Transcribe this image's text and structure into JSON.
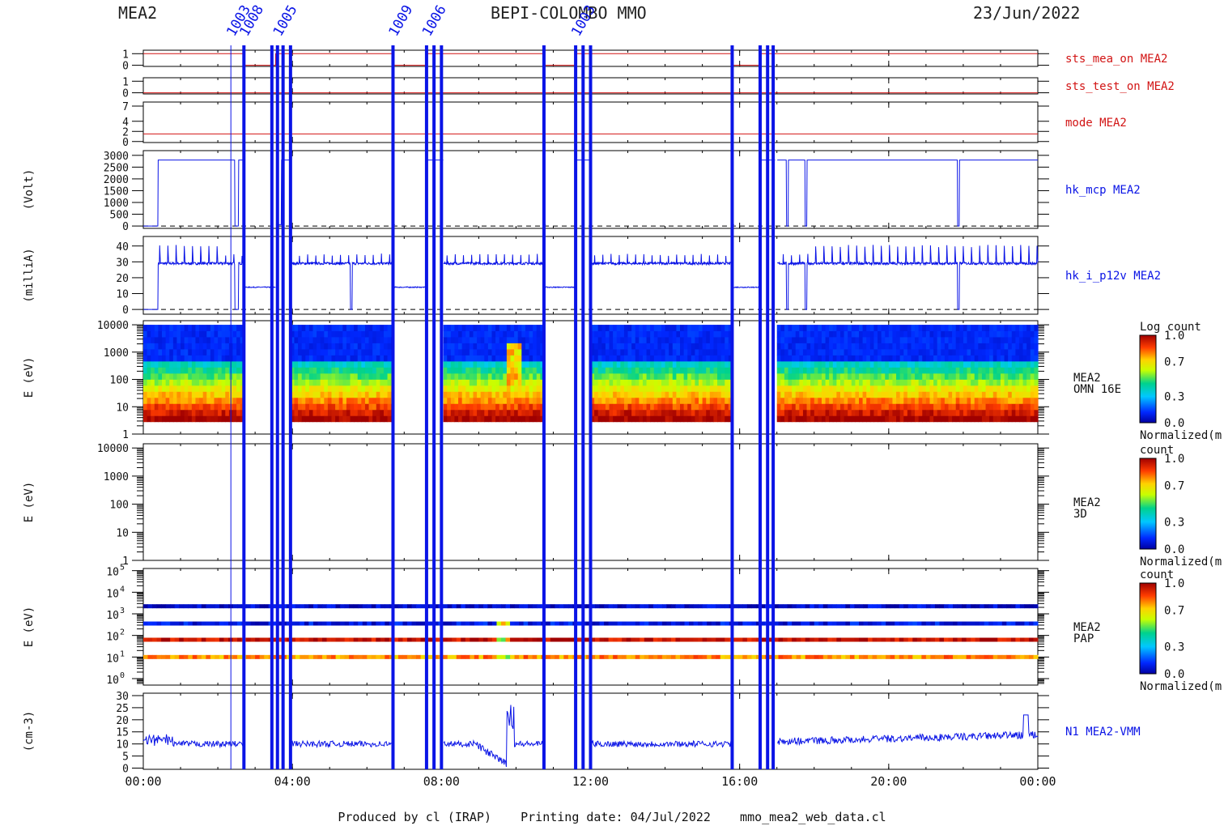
{
  "header": {
    "instrument": "MEA2",
    "title": "BEPI-COLOMBO MMO",
    "date": "23/Jun/2022"
  },
  "footer": "Produced by cl (IRAP)    Printing date: 04/Jul/2022    mmo_mea2_web_data.cl",
  "colors": {
    "blue": "#0a14e6",
    "red": "#d21414",
    "axis": "#000000"
  },
  "chart_data": {
    "type": "line",
    "time_axis": {
      "range_hours": [
        0,
        24
      ],
      "ticks": [
        "00:00",
        "04:00",
        "08:00",
        "12:00",
        "16:00",
        "20:00",
        "00:00"
      ],
      "tick_hours": [
        0,
        4,
        8,
        12,
        16,
        20,
        24
      ]
    },
    "gaps_hours": [
      [
        2.7,
        3.55
      ],
      [
        3.95,
        6.7
      ],
      [
        6.75,
        7.6
      ],
      [
        8.05,
        10.75
      ],
      [
        10.8,
        11.6
      ],
      [
        12.0,
        15.8
      ],
      [
        15.85,
        16.55
      ],
      [
        16.95,
        17.0
      ]
    ],
    "event_lines_hours": [
      2.35,
      2.7,
      3.45,
      3.6,
      3.75,
      3.95,
      6.7,
      7.6,
      7.8,
      8.0,
      10.75,
      11.6,
      11.8,
      12.0,
      15.8,
      16.55,
      16.75,
      16.9
    ],
    "event_labels": [
      "1003",
      "1008",
      "1005",
      "1009",
      "1006",
      "1003"
    ],
    "panels": [
      {
        "name": "sts_mea_on MEA2",
        "color": "red",
        "yticks": [
          "1",
          "0"
        ],
        "ytick_values": [
          1,
          0
        ],
        "ylim": [
          -0.1,
          1.3
        ],
        "value_on": 1,
        "value_off": 0
      },
      {
        "name": "sts_test_on MEA2",
        "color": "red",
        "yticks": [
          "1",
          "0"
        ],
        "ytick_values": [
          1,
          0
        ],
        "ylim": [
          -0.1,
          1.3
        ],
        "value": 0
      },
      {
        "name": "mode MEA2",
        "color": "red",
        "yticks": [
          "7",
          "4",
          "2",
          "0"
        ],
        "ytick_values": [
          7,
          4,
          2,
          0
        ],
        "ylim": [
          -0.2,
          7.8
        ],
        "value": 1.5
      },
      {
        "name": "hk_mcp MEA2",
        "color": "blue",
        "ylabel": "(Volt)",
        "yticks": [
          "3000",
          "2500",
          "2000",
          "1500",
          "1000",
          "500",
          "0"
        ],
        "ytick_values": [
          3000,
          2500,
          2000,
          1500,
          1000,
          500,
          0
        ],
        "ylim": [
          -100,
          3200
        ],
        "high": 2800,
        "low": 0,
        "low_windows_hours": [
          [
            0,
            0.4
          ],
          [
            2.45,
            2.55
          ],
          [
            5.55,
            5.6
          ],
          [
            17.25,
            17.3
          ],
          [
            17.75,
            17.8
          ],
          [
            21.85,
            21.9
          ]
        ]
      },
      {
        "name": "hk_i_p12v MEA2",
        "color": "blue",
        "ylabel": "(milliA)",
        "yticks": [
          "40",
          "30",
          "20",
          "10",
          "0"
        ],
        "ytick_values": [
          40,
          30,
          20,
          10,
          0
        ],
        "ylim": [
          -3,
          46
        ],
        "baseline": 29,
        "spike": 40,
        "off_level": 14
      },
      {
        "name": "MEA2\nOMN 16E",
        "ylabel": "E (eV)",
        "kind": "spectrogram",
        "yticks": [
          "10000",
          "1000",
          "100",
          "10",
          "1"
        ],
        "log_range": [
          0,
          4.15
        ],
        "colorbar": {
          "title": "Log count",
          "ticks": [
            "1.0",
            "0.7",
            "0.3",
            "0.0"
          ],
          "label": "Normalized(m"
        }
      },
      {
        "name": "MEA2\n3D",
        "ylabel": "E (eV)",
        "kind": "empty",
        "yticks": [
          "10000",
          "1000",
          "100",
          "10",
          "1"
        ],
        "log_range": [
          0,
          4.15
        ],
        "colorbar": {
          "title": "count",
          "ticks": [
            "1.0",
            "0.7",
            "0.3",
            "0.0"
          ],
          "label": "Normalized(m"
        }
      },
      {
        "name": "MEA2\nPAP",
        "ylabel": "E (eV)",
        "kind": "bands",
        "yticks_exp": [
          "5",
          "4",
          "3",
          "2",
          "1",
          "0"
        ],
        "log_range": [
          -0.3,
          5.1
        ],
        "band_log_energies": [
          3.35,
          2.55,
          1.8,
          1.0
        ],
        "colorbar": {
          "title": "count",
          "ticks": [
            "1.0",
            "0.7",
            "0.3",
            "0.0"
          ],
          "label": "Normalized(m"
        }
      },
      {
        "name": "N1 MEA2-VMM",
        "color": "blue",
        "ylabel": "(cm-3)",
        "yticks": [
          "30",
          "25",
          "20",
          "15",
          "10",
          "5",
          "0"
        ],
        "ytick_values": [
          30,
          25,
          20,
          15,
          10,
          5,
          0
        ],
        "ylim": [
          -0.5,
          31
        ],
        "typical": 10
      }
    ]
  }
}
